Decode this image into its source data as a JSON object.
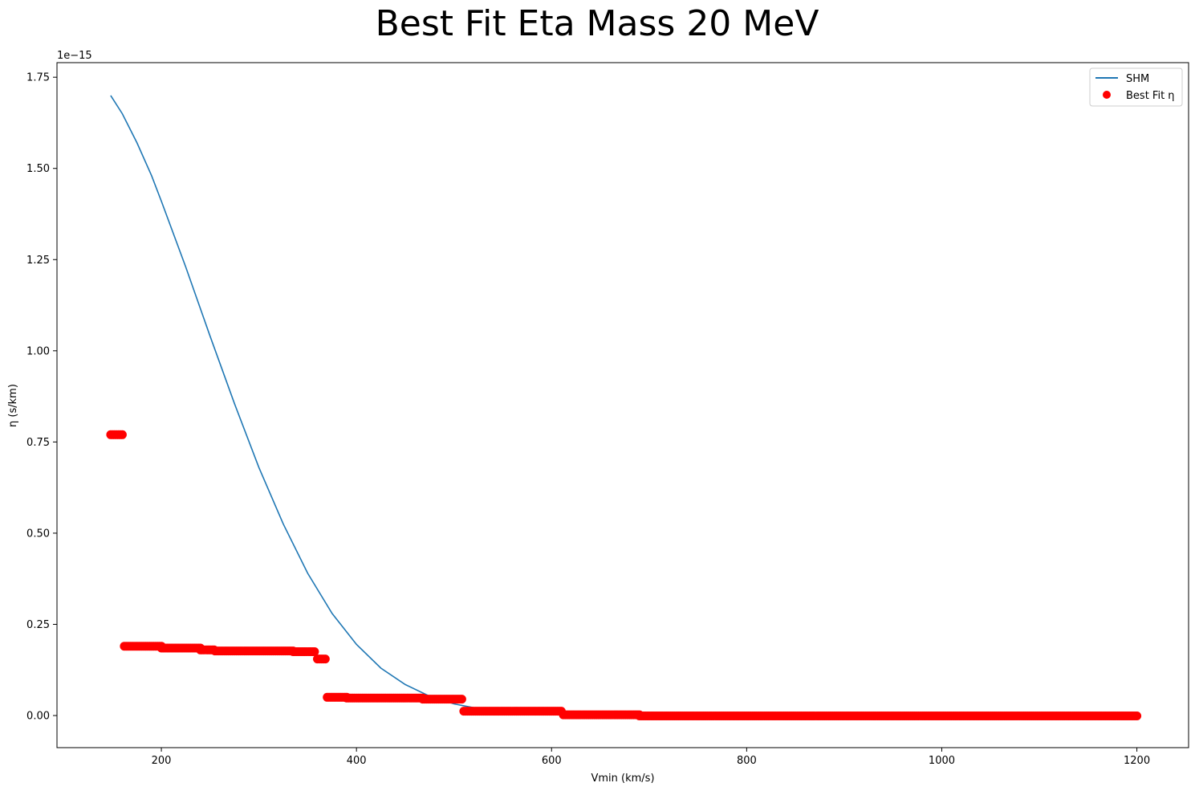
{
  "chart_data": {
    "type": "line",
    "title": "Best Fit Eta Mass 20 MeV",
    "xlabel": "Vmin (km/s)",
    "ylabel": "η (s/km)",
    "y_offset_label": "1e−15",
    "xlim": [
      93,
      1253
    ],
    "ylim": [
      -0.088,
      1.79
    ],
    "x_ticks": [
      200,
      400,
      600,
      800,
      1000,
      1200
    ],
    "x_tick_labels": [
      "200",
      "400",
      "600",
      "800",
      "1000",
      "1200"
    ],
    "y_ticks": [
      0,
      0.25,
      0.5,
      0.75,
      1.0,
      1.25,
      1.5,
      1.75
    ],
    "y_tick_labels": [
      "0.00",
      "0.25",
      "0.50",
      "0.75",
      "1.00",
      "1.25",
      "1.50",
      "1.75"
    ],
    "grid": false,
    "legend_position": "top-right",
    "series": [
      {
        "name": "SHM",
        "kind": "line",
        "color": "#1f77b4",
        "x": [
          148,
          160,
          175,
          190,
          200,
          225,
          250,
          275,
          300,
          325,
          350,
          375,
          400,
          425,
          450,
          475,
          500,
          525,
          550,
          575,
          600,
          625,
          650,
          700,
          800,
          1000,
          1200
        ],
        "y": [
          1.7,
          1.65,
          1.57,
          1.48,
          1.41,
          1.23,
          1.04,
          0.855,
          0.68,
          0.525,
          0.39,
          0.28,
          0.195,
          0.13,
          0.085,
          0.053,
          0.032,
          0.019,
          0.011,
          0.006,
          0.0035,
          0.002,
          0.001,
          0.0004,
          0.0001,
          0.0,
          0.0
        ]
      },
      {
        "name": "Best Fit η",
        "kind": "scatter",
        "color": "#ff0000",
        "segments": [
          {
            "x_start": 148,
            "x_end": 160,
            "y": 0.77
          },
          {
            "x_start": 162,
            "x_end": 200,
            "y": 0.19
          },
          {
            "x_start": 200,
            "x_end": 240,
            "y": 0.185
          },
          {
            "x_start": 240,
            "x_end": 255,
            "y": 0.18
          },
          {
            "x_start": 255,
            "x_end": 335,
            "y": 0.177
          },
          {
            "x_start": 335,
            "x_end": 358,
            "y": 0.175
          },
          {
            "x_start": 360,
            "x_end": 368,
            "y": 0.155
          },
          {
            "x_start": 370,
            "x_end": 390,
            "y": 0.05
          },
          {
            "x_start": 390,
            "x_end": 468,
            "y": 0.048
          },
          {
            "x_start": 468,
            "x_end": 508,
            "y": 0.045
          },
          {
            "x_start": 510,
            "x_end": 610,
            "y": 0.012
          },
          {
            "x_start": 612,
            "x_end": 690,
            "y": 0.002
          },
          {
            "x_start": 690,
            "x_end": 1200,
            "y": -0.001
          }
        ]
      }
    ]
  }
}
